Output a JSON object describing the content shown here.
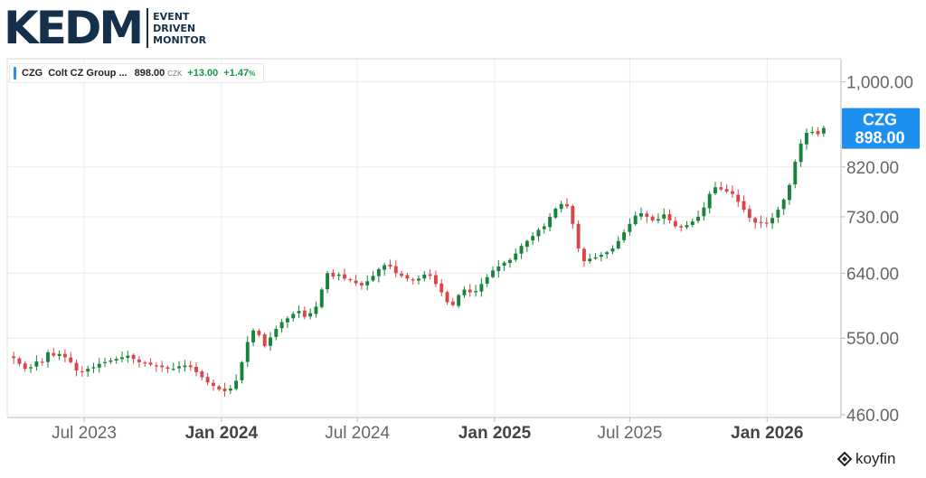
{
  "brand": {
    "logo_text": "KEDM",
    "sub_lines": [
      "EVENT",
      "DRIVEN",
      "MONITOR"
    ],
    "color": "#15304a"
  },
  "legend": {
    "ticker": "CZG",
    "name": "Colt CZ Group ...",
    "price": "898.00",
    "currency": "CZK",
    "change": "+13.00",
    "change_pct": "+1.47",
    "pct_sign": "%"
  },
  "tag": {
    "ticker": "CZG",
    "price": "898.00",
    "color": "#1e90f0"
  },
  "watermark": "koyfin",
  "colors": {
    "up": "#16843a",
    "down": "#d9464a",
    "grid": "#ececec"
  },
  "chart_data": {
    "type": "candlestick",
    "title": "",
    "xlabel": "",
    "ylabel": "",
    "y_scale": "log",
    "ylim": [
      460,
      1040
    ],
    "y_ticks": [
      460,
      550,
      640,
      730,
      820,
      1000
    ],
    "y_tick_labels": [
      "460.00",
      "550.00",
      "640.00",
      "730.00",
      "820.00",
      "1,000.00"
    ],
    "x_range": [
      "2023-03-20",
      "2026-04-10"
    ],
    "x_ticks": [
      {
        "date": "2023-07-01",
        "label": "Jul 2023",
        "bold": false
      },
      {
        "date": "2024-01-01",
        "label": "Jan 2024",
        "bold": true
      },
      {
        "date": "2024-07-01",
        "label": "Jul 2024",
        "bold": false
      },
      {
        "date": "2025-01-01",
        "label": "Jan 2025",
        "bold": true
      },
      {
        "date": "2025-07-01",
        "label": "Jul 2025",
        "bold": false
      },
      {
        "date": "2026-01-01",
        "label": "Jan 2026",
        "bold": true
      }
    ],
    "interval": "weekly",
    "close": [
      525,
      518,
      512,
      514,
      521,
      520,
      532,
      528,
      530,
      526,
      520,
      510,
      508,
      512,
      514,
      518,
      520,
      522,
      524,
      526,
      528,
      524,
      520,
      519,
      517,
      516,
      514,
      512,
      512,
      515,
      516,
      514,
      508,
      502,
      496,
      492,
      488,
      486,
      489,
      498,
      520,
      545,
      560,
      554,
      540,
      551,
      562,
      571,
      576,
      582,
      586,
      578,
      583,
      592,
      616,
      640,
      635,
      638,
      632,
      630,
      625,
      622,
      628,
      636,
      646,
      652,
      650,
      640,
      636,
      632,
      630,
      632,
      638,
      636,
      624,
      612,
      598,
      594,
      608,
      616,
      612,
      614,
      624,
      634,
      644,
      650,
      656,
      660,
      670,
      682,
      690,
      698,
      708,
      714,
      730,
      744,
      752,
      748,
      718,
      678,
      658,
      662,
      664,
      668,
      672,
      678,
      690,
      704,
      718,
      732,
      736,
      730,
      724,
      726,
      734,
      724,
      714,
      712,
      716,
      722,
      730,
      746,
      770,
      782,
      778,
      774,
      770,
      756,
      742,
      728,
      720,
      720,
      720,
      728,
      742,
      760,
      786,
      830,
      866,
      888,
      890,
      885,
      898
    ]
  }
}
